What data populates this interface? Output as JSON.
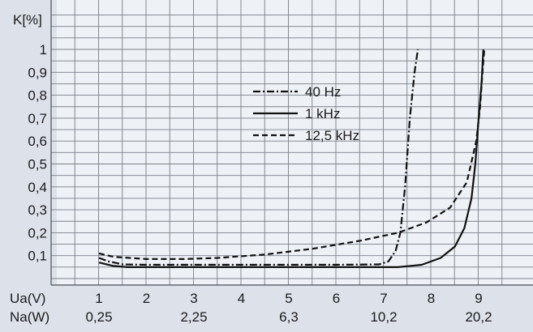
{
  "chart_data": {
    "type": "line",
    "ylabel": "K[%]",
    "y_ticks": [
      "1",
      "0,9",
      "0,8",
      "0,7",
      "0,6",
      "0,5",
      "0,4",
      "0,3",
      "0,2",
      "0,1"
    ],
    "ylim": [
      0,
      1.05
    ],
    "xlim": [
      0.95,
      9.2
    ],
    "x_axis_ua": {
      "label": "Ua(V)",
      "ticks": [
        {
          "text": "1",
          "x": 1
        },
        {
          "text": "2",
          "x": 2
        },
        {
          "text": "3",
          "x": 3
        },
        {
          "text": "4",
          "x": 4
        },
        {
          "text": "5",
          "x": 5
        },
        {
          "text": "6",
          "x": 6
        },
        {
          "text": "7",
          "x": 7
        },
        {
          "text": "8",
          "x": 8
        },
        {
          "text": "9",
          "x": 9
        }
      ]
    },
    "x_axis_na": {
      "label": "Na(W)",
      "ticks": [
        {
          "text": "0,25",
          "x": 1
        },
        {
          "text": "2,25",
          "x": 3
        },
        {
          "text": "6,3",
          "x": 5
        },
        {
          "text": "10,2",
          "x": 7
        },
        {
          "text": "20,2",
          "x": 9
        }
      ]
    },
    "grid": true,
    "legend_position": "top-right",
    "series": [
      {
        "name": "40   Hz",
        "style": "dashdot",
        "points": [
          [
            1.0,
            0.09
          ],
          [
            1.2,
            0.075
          ],
          [
            1.5,
            0.062
          ],
          [
            2.0,
            0.06
          ],
          [
            3.0,
            0.06
          ],
          [
            4.0,
            0.06
          ],
          [
            5.0,
            0.06
          ],
          [
            6.0,
            0.06
          ],
          [
            6.9,
            0.062
          ],
          [
            7.1,
            0.075
          ],
          [
            7.25,
            0.12
          ],
          [
            7.35,
            0.2
          ],
          [
            7.45,
            0.4
          ],
          [
            7.55,
            0.7
          ],
          [
            7.65,
            0.9
          ],
          [
            7.72,
            1.0
          ]
        ]
      },
      {
        "name": "1   kHz",
        "style": "solid",
        "points": [
          [
            1.0,
            0.07
          ],
          [
            1.3,
            0.055
          ],
          [
            1.6,
            0.05
          ],
          [
            2.5,
            0.05
          ],
          [
            4.0,
            0.05
          ],
          [
            6.0,
            0.05
          ],
          [
            7.3,
            0.05
          ],
          [
            7.8,
            0.06
          ],
          [
            8.2,
            0.09
          ],
          [
            8.5,
            0.14
          ],
          [
            8.7,
            0.22
          ],
          [
            8.85,
            0.35
          ],
          [
            8.93,
            0.5
          ],
          [
            9.0,
            0.7
          ],
          [
            9.06,
            0.85
          ],
          [
            9.1,
            1.0
          ]
        ]
      },
      {
        "name": "12,5 kHz",
        "style": "dashed",
        "points": [
          [
            1.0,
            0.11
          ],
          [
            1.3,
            0.095
          ],
          [
            2.0,
            0.085
          ],
          [
            2.8,
            0.085
          ],
          [
            3.5,
            0.09
          ],
          [
            4.5,
            0.105
          ],
          [
            5.5,
            0.13
          ],
          [
            6.5,
            0.165
          ],
          [
            7.3,
            0.2
          ],
          [
            7.9,
            0.245
          ],
          [
            8.4,
            0.31
          ],
          [
            8.75,
            0.42
          ],
          [
            8.95,
            0.6
          ],
          [
            9.03,
            0.75
          ],
          [
            9.08,
            0.9
          ],
          [
            9.12,
            1.0
          ]
        ]
      }
    ]
  }
}
